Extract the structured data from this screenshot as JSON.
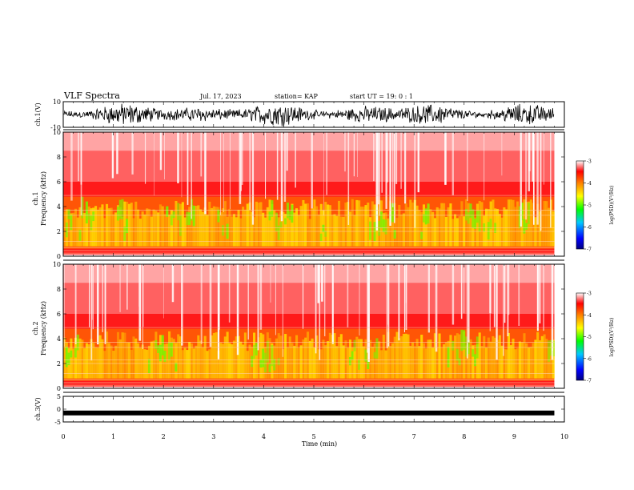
{
  "header": {
    "title": "VLF Spectra",
    "date": "Jul. 17, 2023",
    "station": "station= KAP",
    "start": "start UT =  19: 0 : 1"
  },
  "colors": {
    "colormap": [
      "#0000ff",
      "#00c8ff",
      "#00ff00",
      "#ffff00",
      "#ff8000",
      "#ff0000",
      "#ffffff"
    ],
    "waveform": "#000000",
    "grid": "#000000"
  },
  "chart_data": [
    {
      "type": "line",
      "panel": "ch1-waveform",
      "ylabel": "ch.1(V)",
      "ylim": [
        -10,
        10
      ],
      "yticks": [
        "10",
        "-10"
      ],
      "xlim": [
        0,
        9.8
      ],
      "description_values": "dense oscillating signal spanning roughly -8 to +8 V"
    },
    {
      "type": "heatmap",
      "panel": "ch1-spectrogram",
      "ylabel": "ch.1\nFrequency (kHz)",
      "ylabel_lines": [
        "ch.1",
        "Frequency (kHz)"
      ],
      "ylim": [
        0,
        10
      ],
      "yticks": [
        "0",
        "2",
        "4",
        "6",
        "8",
        "10"
      ],
      "xlim": [
        0,
        9.8
      ],
      "colorbar": {
        "label": "log(PSD)(V²/Hz)",
        "range": [
          -7,
          -3
        ],
        "ticks": [
          "-3",
          "-4",
          "-5",
          "-6",
          "-7"
        ]
      }
    },
    {
      "type": "heatmap",
      "panel": "ch2-spectrogram",
      "ylabel": "ch.2\nFrequency (kHz)",
      "ylabel_lines": [
        "ch.2",
        "Frequency (kHz)"
      ],
      "ylim": [
        0,
        10
      ],
      "yticks": [
        "0",
        "2",
        "4",
        "6",
        "8",
        "10"
      ],
      "xlim": [
        0,
        9.8
      ],
      "colorbar": {
        "label": "log(PSD)(V²/Hz)",
        "range": [
          -7,
          -3
        ],
        "ticks": [
          "-3",
          "-4",
          "-5",
          "-6",
          "-7"
        ]
      }
    },
    {
      "type": "line",
      "panel": "ch3-waveform",
      "ylabel": "ch.3(V)",
      "ylim": [
        -5,
        5
      ],
      "yticks": [
        "5",
        "0",
        "-5"
      ],
      "xlim": [
        0,
        9.8
      ],
      "level": -1.5
    }
  ],
  "xaxis": {
    "label": "Time (min)",
    "ticks": [
      "0",
      "1",
      "2",
      "3",
      "4",
      "5",
      "6",
      "7",
      "8",
      "9",
      "10"
    ]
  }
}
